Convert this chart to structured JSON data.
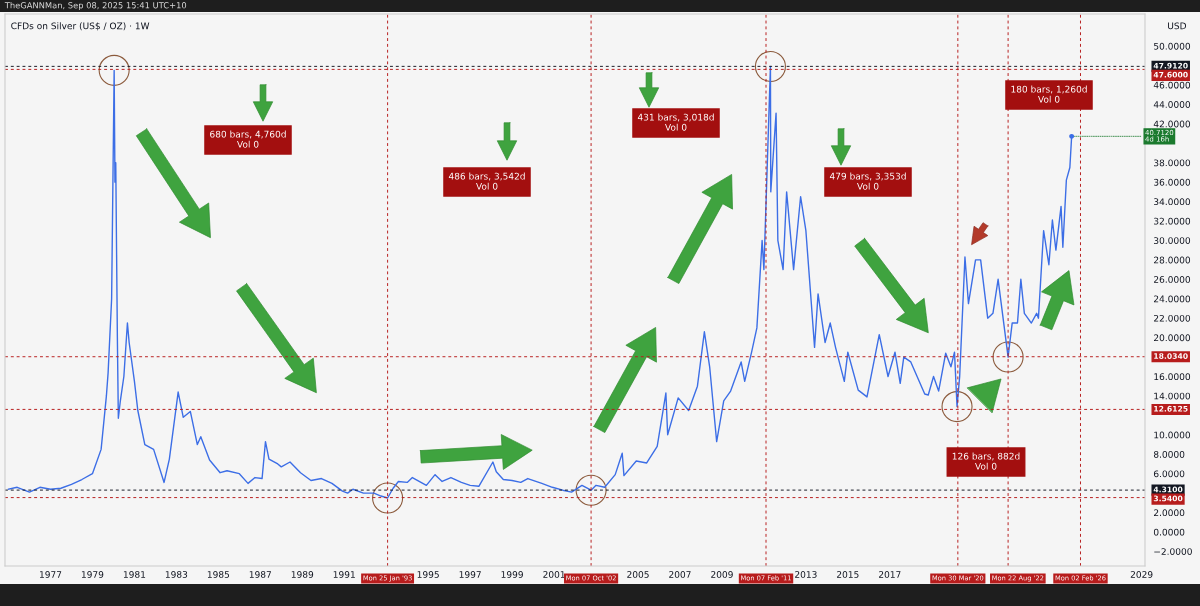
{
  "chart_data": {
    "type": "line",
    "title": "CFDs on Silver (US$ / OZ) · 1W",
    "ylabel": "USD",
    "annotations": [
      "TheGANNMan, Sep 08, 2025 15:41 UTC+10",
      "680 bars, 4,760d\nVol 0",
      "486 bars, 3,542d\nVol 0",
      "431 bars, 3,018d\nVol 0",
      "479 bars, 3,353d\nVol 0",
      "180 bars, 1,260d\nVol 0",
      "126 bars, 882d\nVol 0",
      {
        "text": "40.7120\n4d 16h",
        "x": "2025-09-01",
        "y": 40.712
      }
    ],
    "x": [
      "1975-01",
      "1975-06",
      "1976-01",
      "1976-07",
      "1977-01",
      "1977-07",
      "1978-01",
      "1978-07",
      "1979-01",
      "1979-06",
      "1979-09",
      "1979-10",
      "1979-12",
      "1980-01-14",
      "1980-01-28",
      "1980-02-11",
      "1980-03-10",
      "1980-03-27",
      "1980-05",
      "1980-07",
      "1980-09",
      "1980-10",
      "1981-01",
      "1981-03",
      "1981-07",
      "1981-12",
      "1982-06",
      "1982-09",
      "1983-02",
      "1983-05",
      "1983-09",
      "1984-01",
      "1984-03",
      "1984-08",
      "1985-02",
      "1985-06",
      "1986-01",
      "1986-06",
      "1986-10",
      "1987-02",
      "1987-04",
      "1987-06",
      "1987-11",
      "1988-01",
      "1988-06",
      "1988-12",
      "1989-06",
      "1989-12",
      "1990-06",
      "1990-12",
      "1991-03",
      "1991-06",
      "1991-12",
      "1992-06",
      "1992-10",
      "1993-01-25",
      "1993-05",
      "1993-08",
      "1994-01",
      "1994-04",
      "1994-12",
      "1995-05",
      "1995-09",
      "1996-02",
      "1996-08",
      "1997-01",
      "1997-06",
      "1998-02",
      "1998-04",
      "1998-08",
      "1999-01",
      "1999-06",
      "1999-10",
      "2000-06",
      "2000-12",
      "2001-06",
      "2001-11",
      "2002-05",
      "2002-10-07",
      "2003-01",
      "2003-06",
      "2003-12",
      "2004-04",
      "2004-05",
      "2004-12",
      "2005-06",
      "2005-12",
      "2006-05",
      "2006-06",
      "2006-12",
      "2007-06",
      "2007-11",
      "2008-03",
      "2008-06",
      "2008-10",
      "2009-02",
      "2009-06",
      "2009-12",
      "2010-02",
      "2010-06",
      "2010-09",
      "2010-12",
      "2011-01",
      "2011-04-25",
      "2011-05",
      "2011-08",
      "2011-09",
      "2011-12",
      "2012-02",
      "2012-06",
      "2012-10",
      "2013-01",
      "2013-04",
      "2013-06",
      "2013-08",
      "2013-12",
      "2014-03",
      "2014-06",
      "2014-11",
      "2015-01",
      "2015-07",
      "2015-12",
      "2016-07",
      "2016-12",
      "2017-04",
      "2017-07",
      "2017-09",
      "2018-01",
      "2018-09",
      "2018-11",
      "2019-02",
      "2019-05",
      "2019-09",
      "2019-12",
      "2020-02",
      "2020-03-16",
      "2020-05",
      "2020-08",
      "2020-10",
      "2021-02",
      "2021-05",
      "2021-09",
      "2021-12",
      "2022-03",
      "2022-08-22",
      "2022-09",
      "2022-11",
      "2023-02",
      "2023-04",
      "2023-06",
      "2023-10",
      "2024-01",
      "2024-02",
      "2024-05",
      "2024-08",
      "2024-10",
      "2024-12",
      "2025-03",
      "2025-04",
      "2025-06",
      "2025-08",
      "2025-09-01"
    ],
    "series": [
      {
        "color": "#3c6ee6",
        "values": [
          4.4,
          4.6,
          4.1,
          4.6,
          4.4,
          4.5,
          4.9,
          5.4,
          6.0,
          8.5,
          14.0,
          16.4,
          24,
          47.5,
          36,
          38,
          20,
          11.7,
          13.5,
          16,
          21.5,
          19.5,
          15.5,
          12.5,
          9.0,
          8.5,
          5.1,
          7.5,
          14.4,
          11.8,
          12.4,
          9.0,
          9.8,
          7.4,
          6.1,
          6.3,
          6.0,
          5.0,
          5.6,
          5.5,
          9.3,
          7.5,
          7.0,
          6.7,
          7.2,
          6.1,
          5.3,
          5.5,
          5.0,
          4.2,
          4.0,
          4.4,
          4.0,
          4.0,
          3.7,
          3.5,
          4.5,
          5.2,
          5.1,
          5.6,
          4.8,
          5.9,
          5.2,
          5.6,
          5.1,
          4.8,
          4.7,
          7.2,
          6.2,
          5.4,
          5.3,
          5.1,
          5.5,
          5.0,
          4.6,
          4.3,
          4.1,
          4.8,
          4.3,
          4.8,
          4.6,
          5.9,
          8.1,
          5.8,
          7.3,
          7.1,
          8.8,
          14.3,
          10.0,
          13.8,
          12.5,
          15.0,
          20.6,
          17.0,
          9.3,
          13.5,
          14.5,
          17.5,
          15.5,
          18.5,
          21,
          30,
          27,
          47.9,
          35,
          43.1,
          30,
          27,
          35,
          27,
          34.5,
          31,
          23.9,
          19,
          24.5,
          19.5,
          21.5,
          19,
          15.5,
          18.5,
          14.6,
          13.9,
          20.3,
          16,
          18.5,
          15.3,
          18,
          17.5,
          14.2,
          14.1,
          16,
          14.5,
          18.4,
          17,
          18.5,
          12.9,
          16,
          28.3,
          23.5,
          28,
          28,
          22,
          22.5,
          26,
          18.0,
          18.5,
          21.5,
          21.5,
          26,
          22.5,
          21.5,
          22.5,
          22,
          31,
          27.5,
          32.1,
          29,
          33.5,
          29.3,
          36.2,
          37.5,
          40.7
        ]
      }
    ],
    "xlim": [
      "1974-11",
      "2029-03"
    ],
    "xticks": [
      {
        "value": "1977",
        "label": "1977"
      },
      {
        "value": "1979",
        "label": "1979"
      },
      {
        "value": "1981",
        "label": "1981"
      },
      {
        "value": "1983",
        "label": "1983"
      },
      {
        "value": "1985",
        "label": "1985"
      },
      {
        "value": "1987",
        "label": "1987"
      },
      {
        "value": "1989",
        "label": "1989"
      },
      {
        "value": "1991",
        "label": "1991"
      },
      {
        "value": "1995",
        "label": "1995"
      },
      {
        "value": "1997",
        "label": "1997"
      },
      {
        "value": "1999",
        "label": "1999"
      },
      {
        "value": "2001",
        "label": "2001"
      },
      {
        "value": "2005",
        "label": "2005"
      },
      {
        "value": "2007",
        "label": "2007"
      },
      {
        "value": "2009",
        "label": "2009"
      },
      {
        "value": "2013",
        "label": "2013"
      },
      {
        "value": "2015",
        "label": "2015"
      },
      {
        "value": "2017",
        "label": "2017"
      },
      {
        "value": "2029",
        "label": "2029"
      }
    ],
    "ylim": [
      -3.5,
      53.3
    ],
    "yticks": [
      {
        "value": -2,
        "label": "−2.0000"
      },
      {
        "value": 0,
        "label": "0.0000"
      },
      {
        "value": 2,
        "label": "2.0000"
      },
      {
        "value": 6,
        "label": "6.0000"
      },
      {
        "value": 8,
        "label": "8.0000"
      },
      {
        "value": 10,
        "label": "10.0000"
      },
      {
        "value": 14,
        "label": "14.0000"
      },
      {
        "value": 16,
        "label": "16.0000"
      },
      {
        "value": 20,
        "label": "20.0000"
      },
      {
        "value": 22,
        "label": "22.0000"
      },
      {
        "value": 24,
        "label": "24.0000"
      },
      {
        "value": 26,
        "label": "26.0000"
      },
      {
        "value": 28,
        "label": "28.0000"
      },
      {
        "value": 30,
        "label": "30.0000"
      },
      {
        "value": 32,
        "label": "32.0000"
      },
      {
        "value": 34,
        "label": "34.0000"
      },
      {
        "value": 36,
        "label": "36.0000"
      },
      {
        "value": 38,
        "label": "38.0000"
      },
      {
        "value": 42,
        "label": "42.0000"
      },
      {
        "value": 44,
        "label": "44.0000"
      },
      {
        "value": 46,
        "label": "46.0000"
      },
      {
        "value": 50,
        "label": "50.0000"
      }
    ],
    "ref_lines": [
      {
        "axis": "y",
        "value": 47.912,
        "label": "47.9120",
        "color": "#131722",
        "line_style": "dashed"
      },
      {
        "axis": "y",
        "value": 47.6,
        "label": "47.6000",
        "color": "#b71c1c",
        "line_style": "dashed"
      },
      {
        "axis": "y",
        "value": 18.034,
        "label": "18.0340",
        "color": "#b71c1c",
        "line_style": "dashed"
      },
      {
        "axis": "y",
        "value": 12.6125,
        "label": "12.6125",
        "color": "#b71c1c",
        "line_style": "dashed"
      },
      {
        "axis": "y",
        "value": 4.31,
        "label": "4.3100",
        "color": "#131722",
        "line_style": "dashed"
      },
      {
        "axis": "y",
        "value": 3.54,
        "label": "3.5400",
        "color": "#b71c1c",
        "line_style": "dashed"
      },
      {
        "axis": "x",
        "value": "1993-01-25",
        "label": "Mon 25 Jan '93",
        "color": "#b71c1c",
        "line_style": "dashed"
      },
      {
        "axis": "x",
        "value": "2002-10-07",
        "label": "Mon 07 Oct '02",
        "color": "#b71c1c",
        "line_style": "dashed"
      },
      {
        "axis": "x",
        "value": "2011-02-07",
        "label": "Mon 07 Feb '11",
        "color": "#b71c1c",
        "line_style": "dashed"
      },
      {
        "axis": "x",
        "value": "2020-03-30",
        "label": "Mon 30 Mar '20",
        "color": "#b71c1c",
        "line_style": "dashed"
      },
      {
        "axis": "x",
        "value": "2022-08-22",
        "label": "Mon 22 Aug '22",
        "color": "#b71c1c",
        "line_style": "dashed"
      },
      {
        "axis": "x",
        "value": "2026-02-02",
        "label": "Mon 02 Feb '26",
        "color": "#b71c1c",
        "line_style": "dashed"
      }
    ],
    "grid": false
  }
}
